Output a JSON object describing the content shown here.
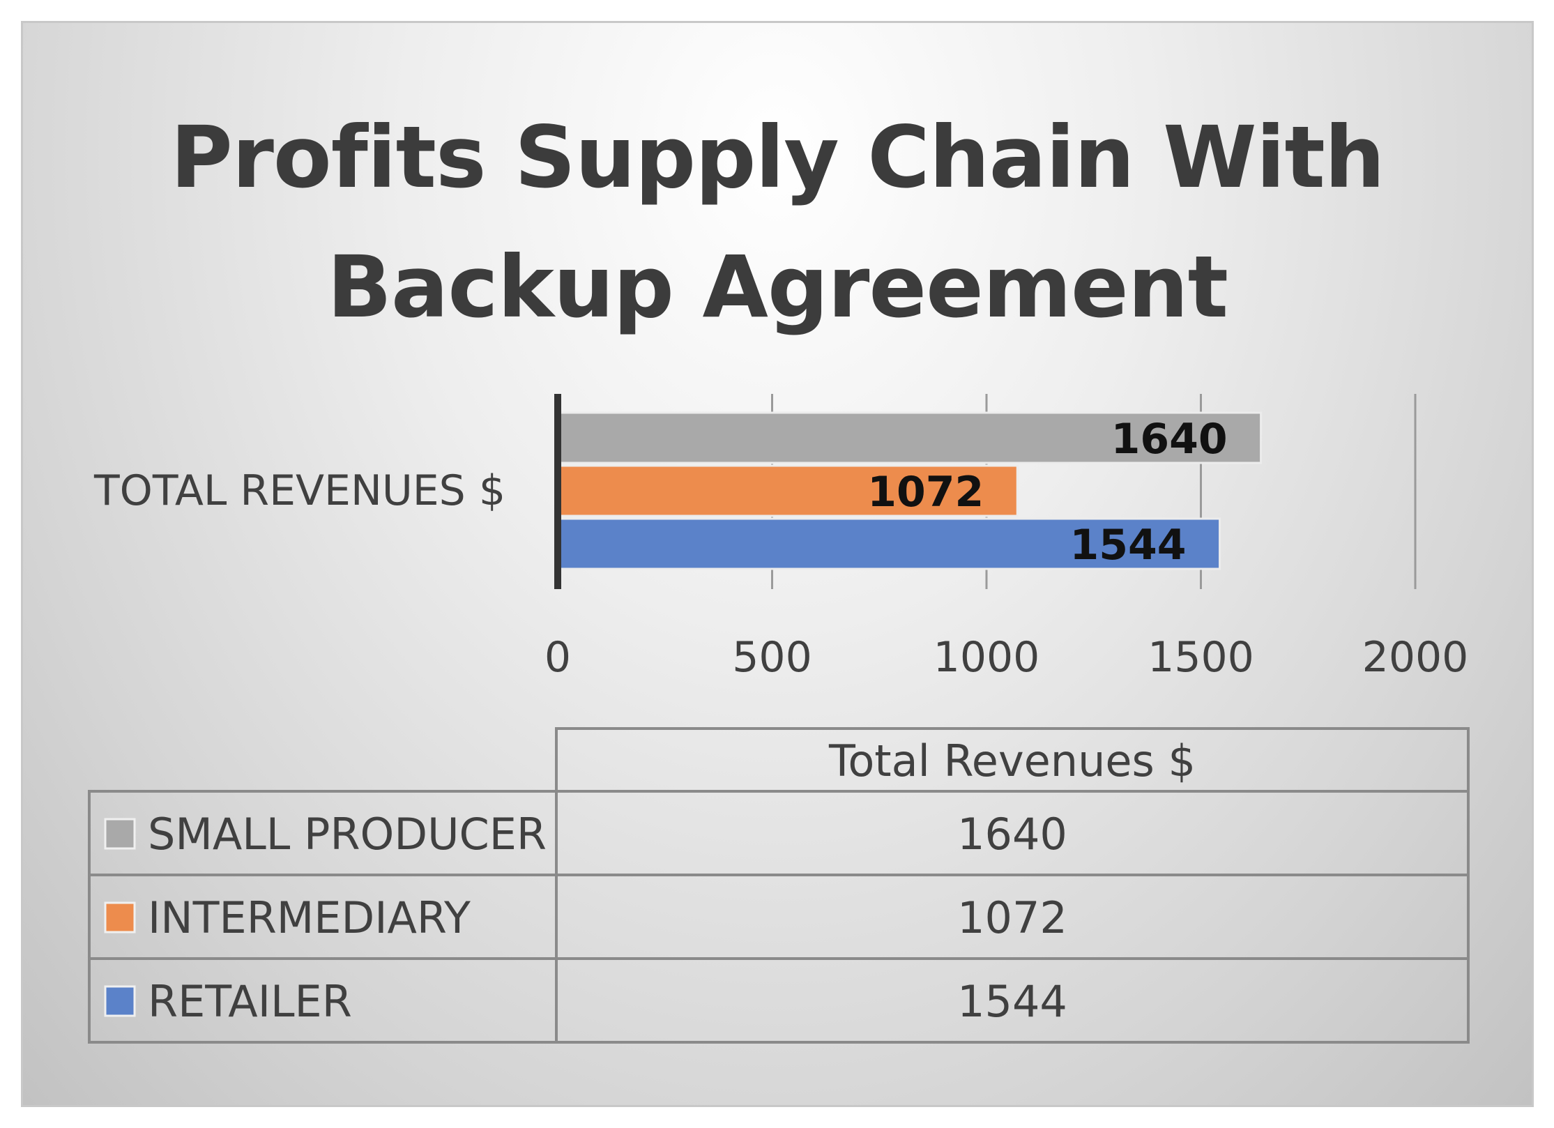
{
  "chart_data": {
    "type": "bar",
    "orientation": "horizontal",
    "title": "Profits Supply Chain With Backup Agreement",
    "title_lines": [
      "Profits Supply Chain With",
      "Backup Agreement"
    ],
    "categories": [
      "TOTAL REVENUES $"
    ],
    "series": [
      {
        "name": "SMALL PRODUCER",
        "values": [
          1640
        ],
        "color": "#a9a9a9"
      },
      {
        "name": "INTERMEDIARY",
        "values": [
          1072
        ],
        "color": "#ed8c4d"
      },
      {
        "name": "RETAILER",
        "values": [
          1544
        ],
        "color": "#5b82c9"
      }
    ],
    "xlim": [
      0,
      2000
    ],
    "xticks": [
      0,
      500,
      1000,
      1500,
      2000
    ],
    "grid": true,
    "data_labels": true,
    "data_table": {
      "header": "Total Revenues $",
      "rows": [
        {
          "name": "SMALL PRODUCER",
          "value": "1640",
          "color": "#a9a9a9"
        },
        {
          "name": "INTERMEDIARY",
          "value": "1072",
          "color": "#ed8c4d"
        },
        {
          "name": "RETAILER",
          "value": "1544",
          "color": "#5b82c9"
        }
      ]
    }
  }
}
